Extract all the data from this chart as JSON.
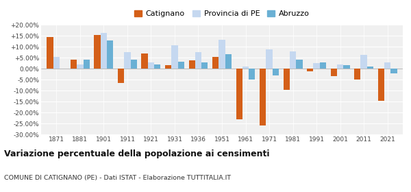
{
  "years": [
    1871,
    1881,
    1901,
    1911,
    1921,
    1931,
    1936,
    1951,
    1961,
    1971,
    1981,
    1991,
    2001,
    2011,
    2021
  ],
  "catignano": [
    14.5,
    4.3,
    15.3,
    -6.5,
    7.0,
    1.5,
    3.8,
    5.3,
    -23.0,
    -26.0,
    -9.5,
    -1.2,
    -3.5,
    -5.0,
    -14.5
  ],
  "provincia_pe": [
    5.5,
    1.8,
    16.5,
    7.5,
    2.8,
    10.8,
    7.5,
    13.3,
    1.0,
    9.0,
    7.8,
    2.5,
    1.8,
    6.2,
    3.0
  ],
  "abruzzo": [
    0.0,
    4.2,
    13.0,
    4.0,
    1.8,
    3.3,
    2.8,
    6.5,
    -5.0,
    -3.0,
    4.0,
    2.8,
    1.5,
    1.0,
    -2.0
  ],
  "color_catignano": "#d45f18",
  "color_provincia": "#c5d8f0",
  "color_abruzzo": "#6ab0d4",
  "title": "Variazione percentuale della popolazione ai censimenti",
  "subtitle": "COMUNE DI CATIGNANO (PE) - Dati ISTAT - Elaborazione TUTTITALIA.IT",
  "ylim": [
    -30,
    20
  ],
  "yticks": [
    -30,
    -25,
    -20,
    -15,
    -10,
    -5,
    0,
    5,
    10,
    15,
    20
  ],
  "bg_color": "#f0f0f0",
  "legend_labels": [
    "Catignano",
    "Provincia di PE",
    "Abruzzo"
  ]
}
